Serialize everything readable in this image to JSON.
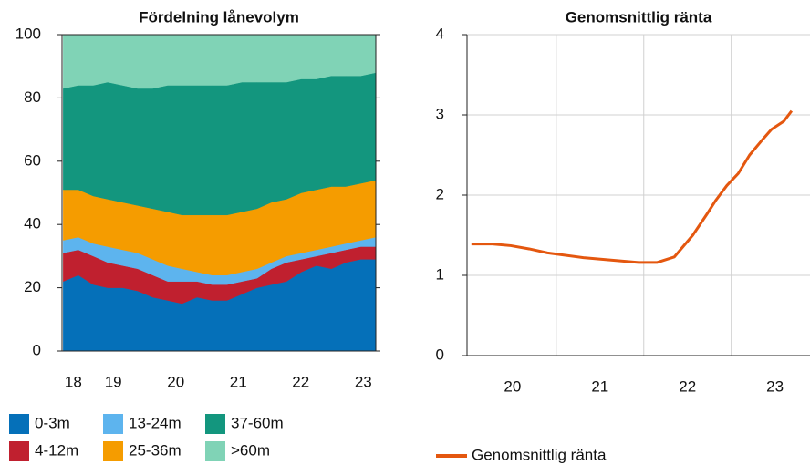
{
  "chart_data": [
    {
      "type": "area",
      "stacked": true,
      "title": "Fördelning lånevolym",
      "x": [
        18.7,
        18.94,
        19.18,
        19.41,
        19.65,
        19.89,
        20.13,
        20.37,
        20.6,
        20.84,
        21.08,
        21.32,
        21.56,
        21.8,
        22.03,
        22.27,
        22.51,
        22.75,
        22.99,
        23.22,
        23.46,
        23.7
      ],
      "series": [
        {
          "name": "0-3m",
          "color": "#0570b9",
          "values": [
            22,
            24,
            21,
            20,
            20,
            19,
            17,
            16,
            15,
            17,
            16,
            16,
            18,
            20,
            21,
            22,
            25,
            27,
            26,
            28,
            29,
            29
          ]
        },
        {
          "name": "4-12m",
          "color": "#c0202f",
          "values": [
            9,
            8,
            9,
            8,
            7,
            7,
            7,
            6,
            7,
            5,
            5,
            5,
            4,
            3,
            5,
            6,
            4,
            3,
            5,
            4,
            4,
            4
          ]
        },
        {
          "name": "13-24m",
          "color": "#5db4ee",
          "values": [
            4,
            4,
            4,
            5,
            5,
            5,
            5,
            5,
            4,
            3,
            3,
            3,
            3,
            3,
            2,
            2,
            2,
            2,
            2,
            2,
            2,
            3
          ]
        },
        {
          "name": "25-36m",
          "color": "#f59c00",
          "values": [
            16,
            15,
            15,
            15,
            15,
            15,
            16,
            17,
            17,
            18,
            19,
            19,
            19,
            19,
            19,
            18,
            19,
            19,
            19,
            18,
            18,
            18
          ]
        },
        {
          "name": "37-60m",
          "color": "#13967e",
          "values": [
            32,
            33,
            35,
            37,
            37,
            37,
            38,
            40,
            41,
            41,
            41,
            41,
            41,
            40,
            38,
            37,
            36,
            35,
            35,
            35,
            34,
            34
          ]
        },
        {
          "name": ">60m",
          "color": "#80d3b6",
          "values": [
            17,
            16,
            16,
            15,
            16,
            17,
            17,
            16,
            16,
            16,
            16,
            16,
            15,
            15,
            15,
            15,
            14,
            14,
            13,
            13,
            13,
            12
          ]
        }
      ],
      "xlim": [
        18.68,
        23.7
      ],
      "xticks": [
        {
          "value": 18.86,
          "label": "18"
        },
        {
          "value": 19.5,
          "label": "19"
        },
        {
          "value": 20.5,
          "label": "20"
        },
        {
          "value": 21.5,
          "label": "21"
        },
        {
          "value": 22.5,
          "label": "22"
        },
        {
          "value": 23.5,
          "label": "23"
        }
      ],
      "ylim": [
        0,
        100
      ],
      "yticks": [
        0,
        20,
        40,
        60,
        80,
        100
      ],
      "grid": false,
      "legend": "bottom"
    },
    {
      "type": "line",
      "title": "Genomsnittlig ränta",
      "x": [
        20.03,
        20.27,
        20.48,
        20.69,
        20.9,
        21.31,
        21.94,
        22.15,
        22.35,
        22.56,
        22.72,
        22.82,
        22.95,
        23.08,
        23.21,
        23.34,
        23.46,
        23.6,
        23.69
      ],
      "series": [
        {
          "name": "Genomsnittlig ränta",
          "color": "#e4570f",
          "values": [
            1.39,
            1.39,
            1.37,
            1.33,
            1.28,
            1.22,
            1.16,
            1.16,
            1.23,
            1.5,
            1.76,
            1.93,
            2.12,
            2.27,
            2.5,
            2.67,
            2.82,
            2.92,
            3.05
          ]
        }
      ],
      "xlim": [
        19.98,
        23.9
      ],
      "xticks": [
        {
          "value": 20.5,
          "label": "20"
        },
        {
          "value": 21.5,
          "label": "21"
        },
        {
          "value": 22.5,
          "label": "22"
        },
        {
          "value": 23.5,
          "label": "23"
        }
      ],
      "ylim": [
        0,
        4
      ],
      "yticks": [
        0,
        1,
        2,
        3,
        4
      ],
      "grid": true,
      "legend": "bottom"
    }
  ]
}
